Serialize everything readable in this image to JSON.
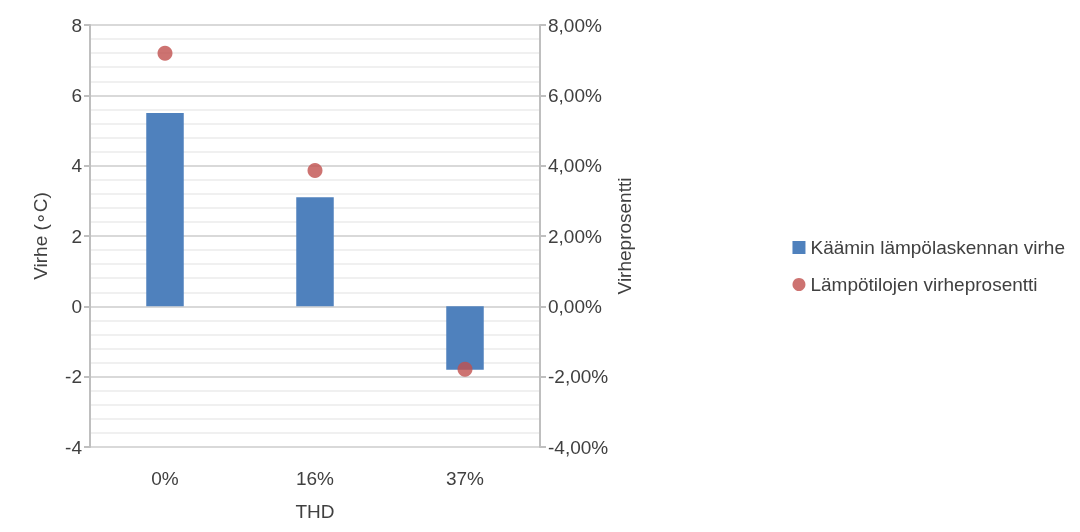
{
  "chart_data": {
    "type": "bar",
    "xlabel": "THD",
    "ylabel": "Virhe (∘C)",
    "y2label": "Virheprosentti",
    "categories": [
      "0%",
      "16%",
      "37%"
    ],
    "series": [
      {
        "name": "Käämin lämpölaskennan virhe",
        "color": "#4f81bd",
        "values": [
          5.5,
          3.1,
          -1.8
        ]
      },
      {
        "name": "Lämpötilojen virheprosentti",
        "type": "scatter",
        "axis": "y2",
        "color": "#c0504d",
        "marker": "circle",
        "values": [
          7.2,
          3.86,
          -1.79
        ]
      }
    ],
    "ylim": [
      -4,
      8
    ],
    "yticks": [
      -4,
      -2,
      0,
      2,
      4,
      6,
      8
    ],
    "y2lim": [
      -4,
      8
    ],
    "y2ticks": [
      {
        "value": -4,
        "label": "-4,00%"
      },
      {
        "value": -2,
        "label": "-2,00%"
      },
      {
        "value": 0,
        "label": "0,00%"
      },
      {
        "value": 2,
        "label": "2,00%"
      },
      {
        "value": 4,
        "label": "4,00%"
      },
      {
        "value": 6,
        "label": "6,00%"
      },
      {
        "value": 8,
        "label": "8,00%"
      }
    ],
    "grid": true,
    "legend": "right"
  }
}
